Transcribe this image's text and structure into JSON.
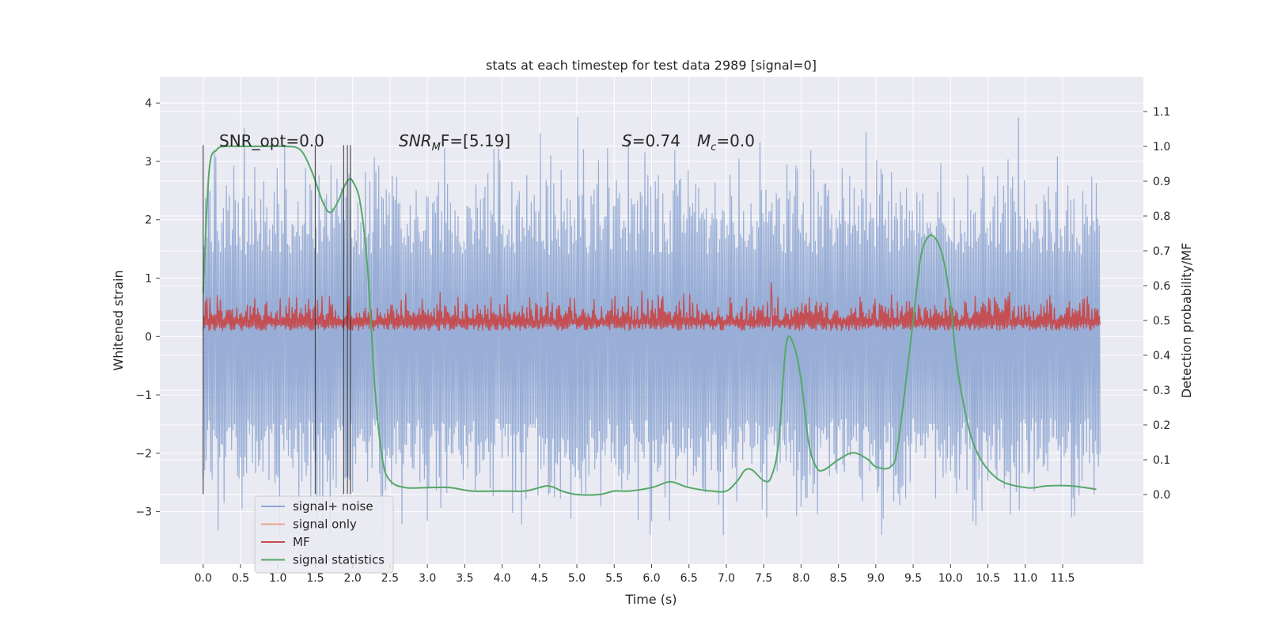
{
  "chart_data": {
    "type": "line",
    "title": "stats at each timestep for test data 2989 [signal=0]",
    "xlabel": "Time (s)",
    "ylabel_left": "Whitened strain",
    "ylabel_right": "Detection probability/MF",
    "xlim": [
      -0.58,
      12.58
    ],
    "ylim_left": [
      -3.9,
      4.45
    ],
    "ylim_right": [
      -0.2,
      1.2
    ],
    "x_ticks": [
      "0.0",
      "0.5",
      "1.0",
      "1.5",
      "2.0",
      "2.5",
      "3.0",
      "3.5",
      "4.0",
      "4.5",
      "5.0",
      "5.5",
      "6.0",
      "6.5",
      "7.0",
      "7.5",
      "8.0",
      "8.5",
      "9.0",
      "9.5",
      "10.0",
      "10.5",
      "11.0",
      "11.5"
    ],
    "y_left_ticks": [
      "4",
      "3",
      "2",
      "1",
      "0",
      "−1",
      "−2",
      "−3"
    ],
    "y_right_ticks": [
      "1.1",
      "1.0",
      "0.9",
      "0.8",
      "0.7",
      "0.6",
      "0.5",
      "0.4",
      "0.3",
      "0.2",
      "0.1",
      "0.0"
    ],
    "annotations": {
      "snr_opt": "SNR_opt=0.0",
      "snr_mf_name": "SNR",
      "snr_mf_sub": "M",
      "snr_mf_rest": "F=[5.19]",
      "s_name": "S",
      "s_rest": "=0.74",
      "mc_name": "M",
      "mc_sub": "c",
      "mc_rest": "=0.0"
    },
    "vlines_x": [
      0.0,
      1.5,
      1.88,
      1.93,
      1.97
    ],
    "vline_range": [
      -2.7,
      3.28
    ],
    "legend": {
      "position": "lower-left",
      "entries": [
        {
          "label": "signal+ noise",
          "color": "#8fa7d3"
        },
        {
          "label": "signal only",
          "color": "#e9a58b"
        },
        {
          "label": "MF",
          "color": "#c44e52"
        },
        {
          "label": "signal statistics",
          "color": "#55a868"
        }
      ]
    },
    "series": [
      {
        "name": "signal+ noise",
        "axis": "left",
        "color": "#8fa7d3",
        "x_range": [
          0.0,
          12.0
        ],
        "amplitude_range": [
          -3.4,
          4.1
        ],
        "samples": 1200
      },
      {
        "name": "MF",
        "axis": "right",
        "color": "#c44e52",
        "x_range": [
          0.0,
          12.0
        ],
        "baseline": 0.5,
        "spread": [
          0.47,
          0.62
        ],
        "peak": {
          "x": 7.6,
          "y": 0.61
        },
        "samples": 1200
      },
      {
        "name": "signal statistics",
        "axis": "right",
        "color": "#55a868",
        "x": [
          0.0,
          0.08,
          0.18,
          0.3,
          0.5,
          0.8,
          1.1,
          1.3,
          1.45,
          1.6,
          1.7,
          1.8,
          1.9,
          1.95,
          2.0,
          2.1,
          2.2,
          2.3,
          2.4,
          2.5,
          2.7,
          3.0,
          3.3,
          3.6,
          4.0,
          4.3,
          4.5,
          4.6,
          4.7,
          4.8,
          5.0,
          5.3,
          5.5,
          5.7,
          6.0,
          6.2,
          6.3,
          6.5,
          6.8,
          7.0,
          7.15,
          7.25,
          7.35,
          7.5,
          7.6,
          7.7,
          7.8,
          7.9,
          8.0,
          8.1,
          8.2,
          8.3,
          8.5,
          8.7,
          8.9,
          9.0,
          9.2,
          9.3,
          9.5,
          9.6,
          9.7,
          9.8,
          9.9,
          10.0,
          10.1,
          10.3,
          10.6,
          11.0,
          11.3,
          11.6,
          11.8,
          11.95
        ],
        "y": [
          0.58,
          0.93,
          0.99,
          1.0,
          1.0,
          1.0,
          1.0,
          0.99,
          0.93,
          0.84,
          0.81,
          0.84,
          0.89,
          0.905,
          0.9,
          0.84,
          0.65,
          0.3,
          0.1,
          0.04,
          0.02,
          0.02,
          0.02,
          0.01,
          0.01,
          0.01,
          0.02,
          0.025,
          0.02,
          0.01,
          0.0,
          0.0,
          0.01,
          0.01,
          0.02,
          0.035,
          0.035,
          0.02,
          0.01,
          0.01,
          0.04,
          0.07,
          0.07,
          0.04,
          0.05,
          0.15,
          0.43,
          0.43,
          0.33,
          0.15,
          0.08,
          0.07,
          0.1,
          0.12,
          0.1,
          0.08,
          0.08,
          0.15,
          0.5,
          0.68,
          0.74,
          0.735,
          0.68,
          0.55,
          0.35,
          0.15,
          0.05,
          0.02,
          0.025,
          0.025,
          0.02,
          0.015
        ]
      }
    ]
  }
}
